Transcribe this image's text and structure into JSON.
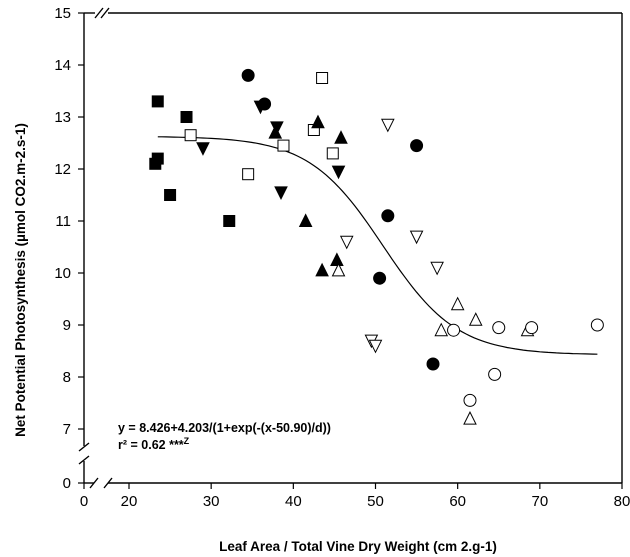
{
  "chart_data": {
    "type": "scatter",
    "xlabel": "Leaf Area / Total Vine Dry Weight (cm 2.g-1)",
    "ylabel": "Net Potential Photosynthesis (µmol CO2.m-2.s-1)",
    "xlim": [
      0,
      80
    ],
    "ylim": [
      0,
      15
    ],
    "axis_breaks": {
      "x": [
        0,
        20
      ],
      "y": [
        0,
        7
      ]
    },
    "x_ticks": [
      "0",
      "20",
      "30",
      "40",
      "50",
      "60",
      "70",
      "80"
    ],
    "y_ticks": [
      "0",
      "7",
      "8",
      "9",
      "10",
      "11",
      "12",
      "13",
      "14",
      "15"
    ],
    "annotation": {
      "line1": "y = 8.426+4.203/(1+exp(-(x-50.90)/d))",
      "line2": "r² = 0.62 ***",
      "line2_superscript": "Z"
    },
    "fit": {
      "a": 8.426,
      "b": 4.203,
      "x0": 50.9,
      "d": -4.5,
      "x_range": [
        23.5,
        77
      ]
    },
    "series": [
      {
        "marker": "filled-square",
        "points": [
          [
            23.5,
            13.3
          ],
          [
            23.5,
            12.2
          ],
          [
            23.2,
            12.1
          ],
          [
            25,
            11.5
          ],
          [
            27,
            13.0
          ],
          [
            32.2,
            11.0
          ]
        ]
      },
      {
        "marker": "open-square",
        "points": [
          [
            27.5,
            12.65
          ],
          [
            34.5,
            11.9
          ],
          [
            38.8,
            12.45
          ],
          [
            42.5,
            12.75
          ],
          [
            43.5,
            13.75
          ],
          [
            44.8,
            12.3
          ]
        ]
      },
      {
        "marker": "filled-down-triangle",
        "points": [
          [
            29,
            12.4
          ],
          [
            36,
            13.2
          ],
          [
            38,
            12.8
          ],
          [
            38.5,
            11.55
          ],
          [
            45.5,
            11.95
          ]
        ]
      },
      {
        "marker": "filled-up-triangle",
        "points": [
          [
            37.8,
            12.7
          ],
          [
            41.5,
            11.0
          ],
          [
            43,
            12.9
          ],
          [
            43.5,
            10.05
          ],
          [
            45.3,
            10.25
          ],
          [
            45.8,
            12.6
          ]
        ]
      },
      {
        "marker": "filled-circle",
        "points": [
          [
            34.5,
            13.8
          ],
          [
            36.5,
            13.25
          ],
          [
            50.5,
            9.9
          ],
          [
            51.5,
            11.1
          ],
          [
            55,
            12.45
          ],
          [
            57,
            8.25
          ]
        ]
      },
      {
        "marker": "open-down-triangle",
        "points": [
          [
            46.5,
            10.6
          ],
          [
            49.5,
            8.7
          ],
          [
            50,
            8.6
          ],
          [
            51.5,
            12.85
          ],
          [
            55,
            10.7
          ],
          [
            57.5,
            10.1
          ]
        ]
      },
      {
        "marker": "open-up-triangle",
        "points": [
          [
            45.5,
            10.05
          ],
          [
            58,
            8.9
          ],
          [
            60,
            9.4
          ],
          [
            61.5,
            7.2
          ],
          [
            62.2,
            9.1
          ],
          [
            68.5,
            8.9
          ]
        ]
      },
      {
        "marker": "open-circle",
        "points": [
          [
            59.5,
            8.9
          ],
          [
            61.5,
            7.55
          ],
          [
            64.5,
            8.05
          ],
          [
            65,
            8.95
          ],
          [
            69,
            8.95
          ],
          [
            77,
            9.0
          ]
        ]
      }
    ]
  }
}
